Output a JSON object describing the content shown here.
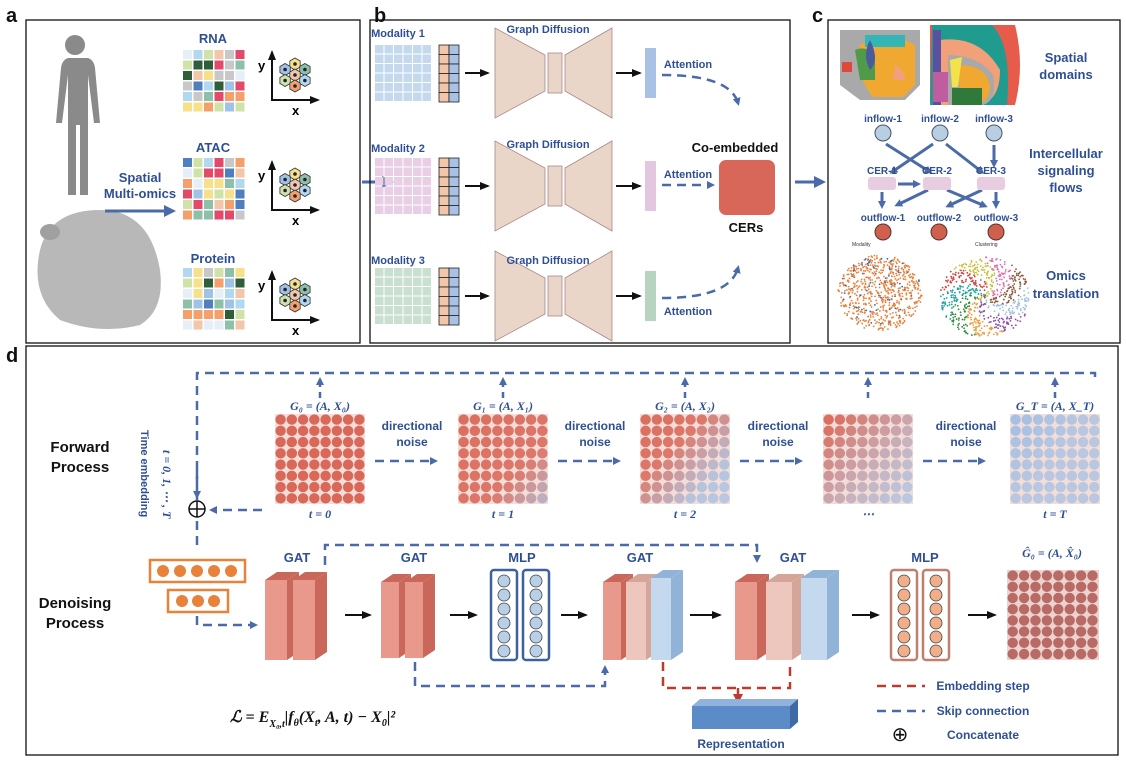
{
  "panels": {
    "a": {
      "label": "a",
      "arrow_text": [
        "Spatial",
        "Multi-omics"
      ],
      "omics": [
        "RNA",
        "ATAC",
        "Protein"
      ],
      "axis_x": "x",
      "axis_y": "y"
    },
    "b": {
      "label": "b",
      "modalities": [
        "Modality 1",
        "Modality 2",
        "Modality 3"
      ],
      "diffusion": "Graph Diffusion",
      "attention": "Attention",
      "co_embedded": "Co-embedded",
      "cers": "CERs"
    },
    "c": {
      "label": "c",
      "spatial": [
        "Spatial",
        "domains"
      ],
      "signaling": [
        "Intercellular",
        "signaling",
        "flows"
      ],
      "omics": [
        "Omics",
        "translation"
      ],
      "inflows": [
        "inflow-1",
        "inflow-2",
        "inflow-3"
      ],
      "cers": [
        "CER-1",
        "CER-2",
        "CER-3"
      ],
      "outflows": [
        "outflow-1",
        "outflow-2",
        "outflow-3"
      ],
      "scatter_titles": [
        "Modality",
        "Clustering"
      ]
    },
    "d": {
      "label": "d",
      "forward": [
        "Forward",
        "Process"
      ],
      "denoising": [
        "Denoising",
        "Process"
      ],
      "time_embedding": "Time embedding",
      "t_range": "t = 0, 1, ⋯ , T",
      "graphs": [
        "G₀ = (A, X₀)",
        "G₁ = (A, X₁)",
        "G₂ = (A, X₂)",
        "",
        "G_T = (A, X_T)"
      ],
      "times": [
        "t = 0",
        "t = 1",
        "t = 2",
        "⋯",
        "t = T"
      ],
      "noise": [
        "directional",
        "noise"
      ],
      "gat": "GAT",
      "mlp": "MLP",
      "output": "Ĝ₀ = (A, X̂₀)",
      "representation": "Representation",
      "loss": [
        "ℒ = E",
        "X₀,t",
        "|f",
        "θ",
        "(X",
        "t",
        ", A, t) − X",
        "0",
        "|²"
      ],
      "legend": {
        "embedding": "Embedding step",
        "skip": "Skip connection",
        "concat": "Concatenate"
      },
      "concat_symbol": "⊕"
    }
  },
  "colors": {
    "text_blue": "#2f4f94",
    "dash_blue": "#4a6aa8",
    "red": "#d8675a",
    "light_blue": "#9fb8dc",
    "orange": "#e8823a",
    "trapezoid": "#ead6c9"
  }
}
